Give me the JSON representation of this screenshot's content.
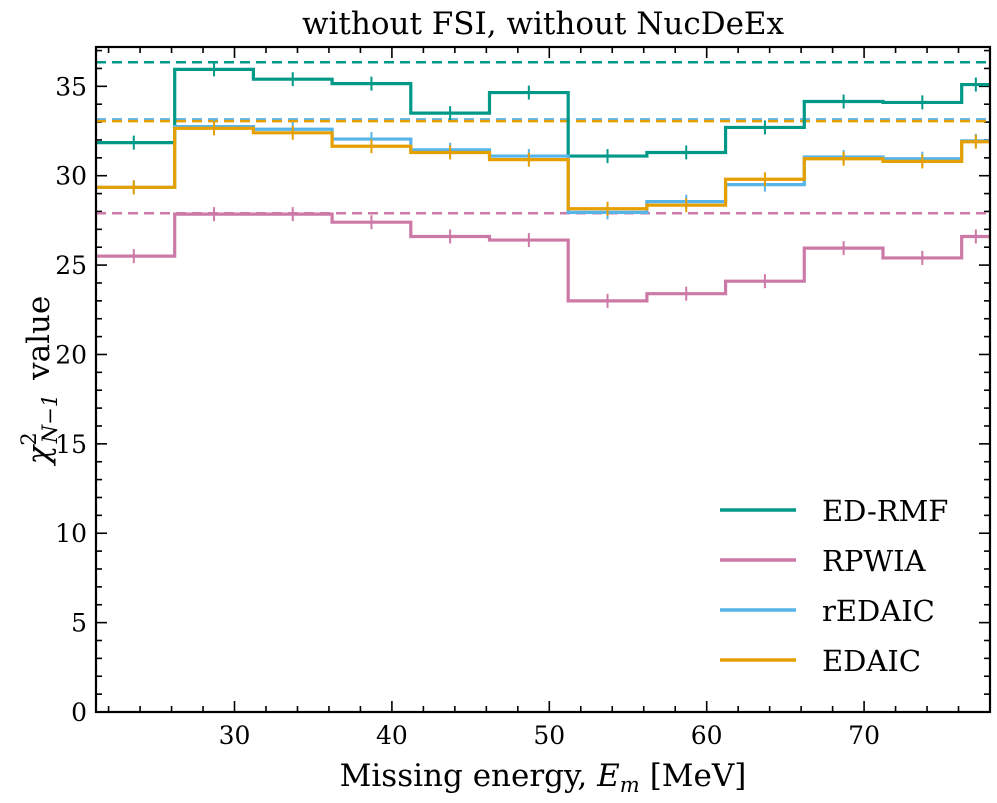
{
  "chart_data": {
    "type": "step",
    "title": "without FSI, without NucDeEx",
    "xlabel_text": "Missing energy,",
    "xlabel_var": "E",
    "xlabel_sub": "m",
    "xlabel_unit": "[MeV]",
    "ylabel_chi": "χ",
    "ylabel_sup": "2",
    "ylabel_sub": "N−1",
    "ylabel_text": "value",
    "xlim": [
      21.2,
      78.0
    ],
    "ylim": [
      0,
      37.2
    ],
    "xticks": [
      30,
      40,
      50,
      60,
      70
    ],
    "yticks": [
      0,
      5,
      10,
      15,
      20,
      25,
      30,
      35
    ],
    "bin_edges": [
      21,
      26.2,
      31.2,
      36.2,
      41.2,
      46.2,
      51.2,
      56.2,
      61.2,
      66.2,
      71.2,
      76.2,
      78
    ],
    "series": [
      {
        "name": "ED-RMF",
        "color": "#009988",
        "values": [
          31.85,
          35.95,
          35.4,
          35.15,
          33.5,
          34.65,
          31.1,
          31.3,
          32.7,
          34.15,
          34.1,
          35.1
        ],
        "hline": 36.35
      },
      {
        "name": "RPWIA",
        "color": "#CC79A7",
        "values": [
          25.5,
          27.85,
          27.85,
          27.4,
          26.6,
          26.4,
          23.0,
          23.4,
          24.1,
          25.95,
          25.4,
          26.6
        ],
        "hline": 27.9
      },
      {
        "name": "rEDAIC",
        "color": "#56B4E9",
        "values": [
          29.35,
          32.75,
          32.6,
          32.05,
          31.45,
          31.1,
          27.95,
          28.55,
          29.5,
          31.05,
          30.95,
          31.95
        ],
        "hline": 33.15
      },
      {
        "name": "EDAIC",
        "color": "#E69F00",
        "values": [
          29.35,
          32.65,
          32.4,
          31.65,
          31.3,
          30.9,
          28.15,
          28.35,
          29.8,
          30.95,
          30.8,
          31.9
        ],
        "hline": 33.05
      }
    ],
    "legend_position": "lower-right"
  }
}
